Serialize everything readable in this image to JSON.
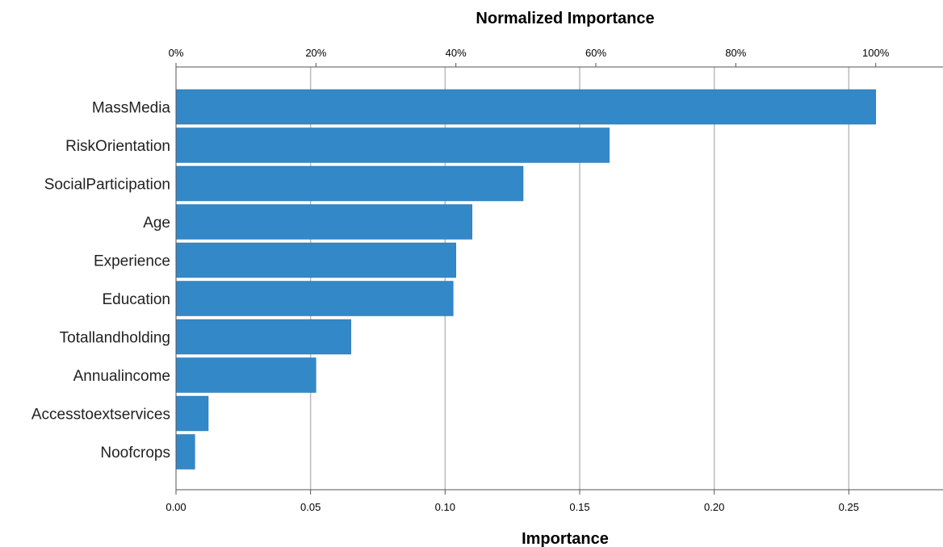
{
  "chart_data": {
    "type": "bar",
    "orientation": "horizontal",
    "categories": [
      "MassMedia",
      "RiskOrientation",
      "SocialParticipation",
      "Age",
      "Experience",
      "Education",
      "Totallandholding",
      "Annualincome",
      "Accesstoextservices",
      "Noofcrops"
    ],
    "values": [
      0.26,
      0.161,
      0.129,
      0.11,
      0.104,
      0.103,
      0.065,
      0.052,
      0.012,
      0.007
    ],
    "xlabel": "Importance",
    "x2label": "Normalized Importance",
    "xlim": [
      0,
      0.285
    ],
    "x_ticks": [
      "0.00",
      "0.05",
      "0.10",
      "0.15",
      "0.20",
      "0.25"
    ],
    "x2_ticks": [
      "0%",
      "20%",
      "40%",
      "60%",
      "80%",
      "100%"
    ],
    "grid": true,
    "bar_color": "#3388c8",
    "grid_color": "#bbbbbb"
  }
}
